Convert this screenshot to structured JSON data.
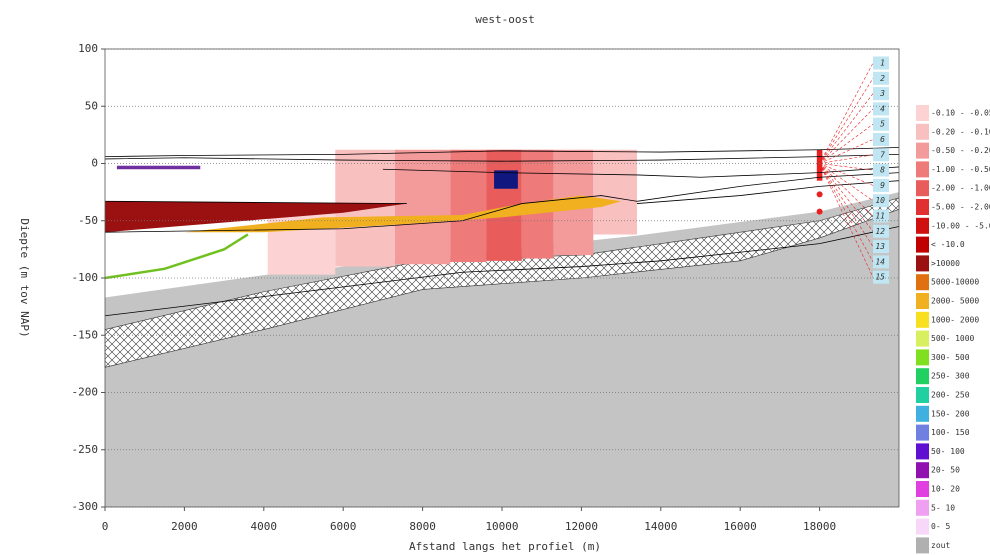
{
  "chart_data": {
    "type": "cross-section",
    "title": "west-oost",
    "xlabel": "Afstand langs het profiel (m)",
    "ylabel": "Diepte (m tov NAP)",
    "xlim": [
      0,
      20000
    ],
    "ylim": [
      -300,
      100
    ],
    "xticks": [
      0,
      2000,
      4000,
      6000,
      8000,
      10000,
      12000,
      14000,
      16000,
      18000
    ],
    "yticks": [
      -300,
      -250,
      -200,
      -150,
      -100,
      -50,
      0,
      50,
      100
    ],
    "grid": true,
    "layers": [
      {
        "color": "#c4c4c4",
        "x": [
          0,
          4100,
          13400,
          18000,
          20000,
          20000,
          0
        ],
        "y": [
          -117,
          -97,
          -63,
          -42,
          -25,
          -300,
          -300
        ]
      },
      {
        "color": "#ffffff",
        "hatch": true,
        "x": [
          0,
          4000,
          8000,
          12000,
          14000,
          18000,
          20000,
          20000,
          18000,
          16000,
          12000,
          8000,
          4000,
          0
        ],
        "y": [
          -145,
          -112,
          -85,
          -80,
          -70,
          -50,
          -30,
          -40,
          -65,
          -85,
          -100,
          -110,
          -145,
          -178
        ]
      },
      {
        "color": "#fcd2d2",
        "x": [
          4100,
          5800,
          5800,
          4100
        ],
        "y": [
          -37,
          -37,
          -97,
          -97
        ]
      },
      {
        "color": "#f9c0c0",
        "x": [
          5800,
          7300,
          7300,
          5800
        ],
        "y": [
          12,
          12,
          -90,
          -90
        ]
      },
      {
        "color": "#f39a9a",
        "x": [
          7300,
          8700,
          8700,
          7300
        ],
        "y": [
          12,
          12,
          -88,
          -88
        ]
      },
      {
        "color": "#ee7a7a",
        "x": [
          8700,
          9600,
          9600,
          8700
        ],
        "y": [
          12,
          12,
          -86,
          -86
        ]
      },
      {
        "color": "#e85c5c",
        "x": [
          9600,
          10500,
          10500,
          9600
        ],
        "y": [
          12,
          12,
          -85,
          -85
        ]
      },
      {
        "color": "#ee7a7a",
        "x": [
          10500,
          11300,
          11300,
          10500
        ],
        "y": [
          12,
          12,
          -83,
          -83
        ]
      },
      {
        "color": "#f39a9a",
        "x": [
          11300,
          12300,
          12300,
          11300
        ],
        "y": [
          12,
          12,
          -80,
          -80
        ]
      },
      {
        "color": "#f9c0c0",
        "x": [
          12300,
          13400,
          13400,
          12300
        ],
        "y": [
          12,
          12,
          -62,
          -62
        ]
      },
      {
        "color": "#9b1010",
        "x": [
          0,
          7600,
          6000,
          0
        ],
        "y": [
          -33,
          -35,
          -43,
          -60
        ]
      },
      {
        "color": "#f0b020",
        "x": [
          2000,
          5500,
          9000,
          10500,
          12000,
          13000,
          12500,
          10000,
          7500,
          4000
        ],
        "y": [
          -60,
          -47,
          -45,
          -35,
          -28,
          -33,
          -38,
          -47,
          -53,
          -60
        ]
      },
      {
        "color": "#7030a0",
        "x": [
          300,
          2400,
          2400,
          300
        ],
        "y": [
          -2,
          -2,
          -5,
          -5
        ]
      },
      {
        "color": "#101880",
        "x": [
          9800,
          10400,
          10400,
          9800
        ],
        "y": [
          -6,
          -6,
          -22,
          -22
        ]
      },
      {
        "color": "#e82020",
        "x": [
          17930,
          18070,
          18070,
          17930
        ],
        "y": [
          12,
          12,
          -15,
          -15
        ]
      }
    ],
    "boundaries": [
      {
        "color": "#000000",
        "x": [
          0,
          2000,
          6000,
          10000,
          14000,
          18000,
          20000
        ],
        "y": [
          6,
          7,
          8,
          11,
          10,
          12,
          14
        ]
      },
      {
        "color": "#000000",
        "x": [
          0,
          2000,
          6000,
          10000,
          14000,
          18000,
          20000
        ],
        "y": [
          4,
          5,
          3,
          2,
          3,
          6,
          8
        ]
      },
      {
        "color": "#000000",
        "x": [
          7000,
          10000,
          13400,
          15000,
          18000,
          20000
        ],
        "y": [
          -5,
          -8,
          -10,
          -12,
          -8,
          -3
        ]
      },
      {
        "color": "#000000",
        "x": [
          0,
          6000,
          9000,
          10500,
          12500,
          13400,
          16000,
          18000,
          20000
        ],
        "y": [
          -60,
          -57,
          -50,
          -35,
          -28,
          -33,
          -20,
          -12,
          -8
        ]
      },
      {
        "color": "#000000",
        "x": [
          0,
          5000,
          9000,
          12000,
          14000,
          18000,
          20000
        ],
        "y": [
          -133,
          -112,
          -95,
          -90,
          -85,
          -70,
          -55
        ]
      },
      {
        "color": "#000000",
        "x": [
          0,
          7600
        ],
        "y": [
          -33,
          -35
        ]
      },
      {
        "color": "#000000",
        "x": [
          13400,
          16000,
          18000,
          20000
        ],
        "y": [
          -35,
          -28,
          -20,
          -15
        ]
      },
      {
        "color": "#70c020",
        "x": [
          0,
          1500,
          3000,
          3600
        ],
        "y": [
          -100,
          -92,
          -75,
          -62
        ]
      }
    ],
    "points": {
      "color": "#e82020",
      "x": [
        18000,
        18000
      ],
      "y": [
        -27,
        -42
      ]
    },
    "wells": [
      1,
      2,
      3,
      4,
      5,
      6,
      7,
      8,
      9,
      10,
      11,
      12,
      13,
      14,
      15
    ],
    "legend": [
      {
        "label": "-0.10 - -0.05",
        "color": "#fcd2d2"
      },
      {
        "label": "-0.20 - -0.10",
        "color": "#f9c0c0"
      },
      {
        "label": "-0.50 - -0.20",
        "color": "#f39a9a"
      },
      {
        "label": "-1.00 - -0.50",
        "color": "#ee7a7a"
      },
      {
        "label": "-2.00 - -1.00",
        "color": "#e85c5c"
      },
      {
        "label": "-5.00 - -2.00",
        "color": "#e03030"
      },
      {
        "label": "-10.00 - -5.00",
        "color": "#d01010"
      },
      {
        "label": "< -10.0",
        "color": "#c00000"
      },
      {
        "label": ">10000",
        "color": "#9b1010"
      },
      {
        "label": "5000-10000",
        "color": "#e07010"
      },
      {
        "label": "2000- 5000",
        "color": "#f0b020"
      },
      {
        "label": "1000- 2000",
        "color": "#f8e020"
      },
      {
        "label": "500- 1000",
        "color": "#d8f060"
      },
      {
        "label": "300- 500",
        "color": "#80e020"
      },
      {
        "label": "250- 300",
        "color": "#20d060"
      },
      {
        "label": "200- 250",
        "color": "#20d0a0"
      },
      {
        "label": "150- 200",
        "color": "#40b0e0"
      },
      {
        "label": "100- 150",
        "color": "#7080e0"
      },
      {
        "label": "50- 100",
        "color": "#6010d0"
      },
      {
        "label": "20- 50",
        "color": "#9010b0"
      },
      {
        "label": "10- 20",
        "color": "#e040e0"
      },
      {
        "label": "5- 10",
        "color": "#f0a0f0"
      },
      {
        "label": "0- 5",
        "color": "#f8d8f8"
      },
      {
        "label": "zout",
        "color": "#b0b0b0"
      }
    ]
  }
}
